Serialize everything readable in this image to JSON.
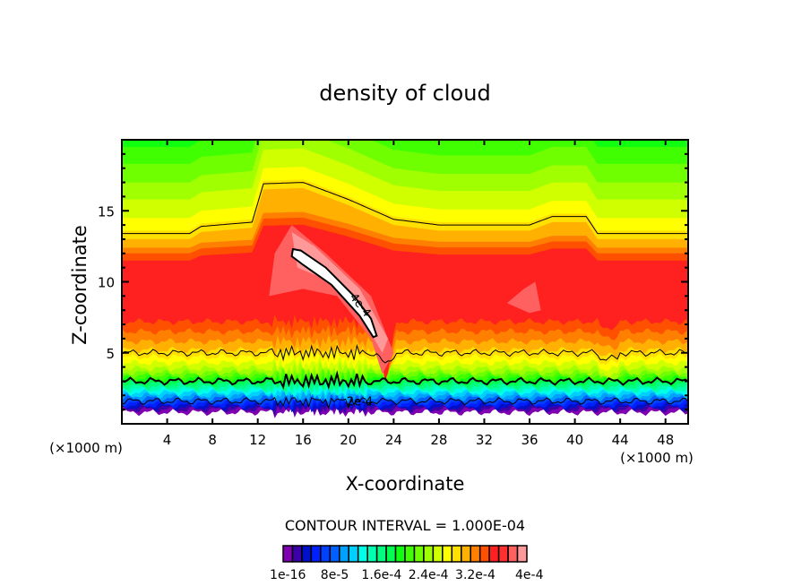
{
  "chart_data": {
    "type": "heatmap",
    "subtype": "filled contour",
    "title": "density of cloud",
    "xlabel": "X-coordinate",
    "ylabel": "Z-coordinate",
    "x_unit_left": "(×1000 m)",
    "x_unit_right": "(×1000 m)",
    "xlim": [
      0,
      50
    ],
    "ylim": [
      0,
      20
    ],
    "xticks": [
      4,
      8,
      12,
      16,
      20,
      24,
      28,
      32,
      36,
      40,
      44,
      48
    ],
    "yticks": [
      5,
      10,
      15
    ],
    "contour_interval_text": "CONTOUR INTERVAL = 1.000E-04",
    "contour_labels": [
      "4e-4",
      "2e-4"
    ],
    "colorbar": {
      "labels": [
        "1e-16",
        "8e-5",
        "1.6e-4",
        "2.4e-4",
        "3.2e-4",
        "4e-4"
      ],
      "colors": [
        "#7f00b0",
        "#3c00a8",
        "#0010c8",
        "#0020ff",
        "#0040ff",
        "#0060ff",
        "#00a0ff",
        "#00d0ff",
        "#00ffe8",
        "#00ffb0",
        "#00ff80",
        "#00ff50",
        "#10ff10",
        "#40ff00",
        "#70ff00",
        "#a0ff00",
        "#d0ff00",
        "#ffff00",
        "#ffe000",
        "#ffb000",
        "#ff8000",
        "#ff5000",
        "#ff2020",
        "#ff3030",
        "#ff6060",
        "#ff9999"
      ]
    },
    "field_max": 0.0004
  }
}
